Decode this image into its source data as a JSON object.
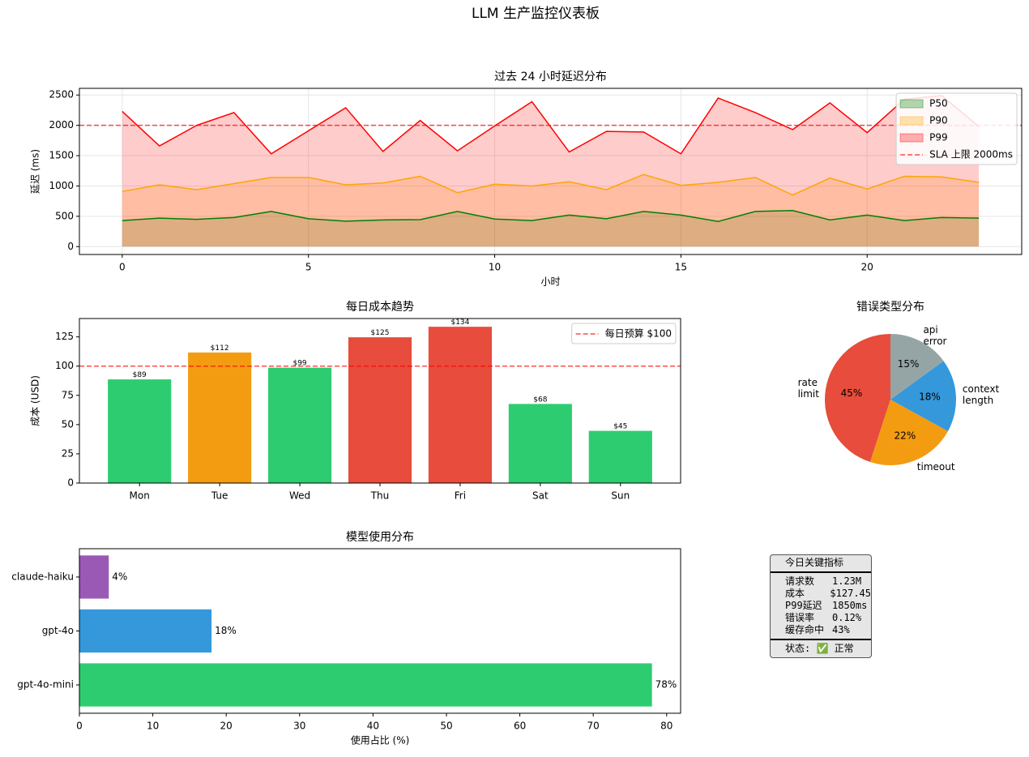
{
  "title": "LLM 生产监控仪表板",
  "chart_data": [
    {
      "type": "area",
      "title": "过去 24 小时延迟分布",
      "xlabel": "小时",
      "ylabel": "延迟 (ms)",
      "x": [
        0,
        1,
        2,
        3,
        4,
        5,
        6,
        7,
        8,
        9,
        10,
        11,
        12,
        13,
        14,
        15,
        16,
        17,
        18,
        19,
        20,
        21,
        22,
        23
      ],
      "series": [
        {
          "name": "P50",
          "color": "green",
          "values": [
            430,
            470,
            450,
            480,
            580,
            460,
            420,
            440,
            445,
            580,
            455,
            430,
            520,
            460,
            580,
            520,
            415,
            580,
            595,
            440,
            520,
            430,
            480,
            470
          ]
        },
        {
          "name": "P90",
          "color": "orange",
          "values": [
            910,
            1020,
            940,
            1040,
            1140,
            1140,
            1020,
            1050,
            1160,
            890,
            1030,
            1000,
            1070,
            940,
            1190,
            1010,
            1060,
            1140,
            850,
            1130,
            950,
            1160,
            1150,
            1060
          ]
        },
        {
          "name": "P99",
          "color": "red",
          "values": [
            2230,
            1660,
            2000,
            2210,
            1530,
            1910,
            2290,
            1570,
            2080,
            1580,
            1990,
            2390,
            1560,
            1900,
            1890,
            1530,
            2450,
            2210,
            1930,
            2370,
            1880,
            2430,
            2490,
            1980
          ]
        }
      ],
      "reference_lines": [
        {
          "name": "SLA 上限 2000ms",
          "value": 2000,
          "color": "red"
        }
      ],
      "xlim": [
        -1.15,
        24.15
      ],
      "ylim": [
        -130,
        2610
      ],
      "xticks": [
        0,
        5,
        10,
        15,
        20
      ],
      "yticks": [
        0,
        500,
        1000,
        1500,
        2000,
        2500
      ],
      "grid": true,
      "legend": "upper right"
    },
    {
      "type": "bar",
      "title": "每日成本趋势",
      "ylabel": "成本 (USD)",
      "categories": [
        "Mon",
        "Tue",
        "Wed",
        "Thu",
        "Fri",
        "Sat",
        "Sun"
      ],
      "values": [
        89,
        112,
        99,
        125,
        134,
        68,
        45
      ],
      "value_labels": [
        "$89",
        "$112",
        "$99",
        "$125",
        "$134",
        "$68",
        "$45"
      ],
      "colors": [
        "#2ecc71",
        "#f39c12",
        "#2ecc71",
        "#e74c3c",
        "#e74c3c",
        "#2ecc71",
        "#2ecc71"
      ],
      "reference_lines": [
        {
          "name": "每日预算 $100",
          "value": 100,
          "color": "red"
        }
      ],
      "ylim": [
        0,
        140.7
      ],
      "yticks": [
        0,
        25,
        50,
        75,
        100,
        125
      ],
      "legend": "upper right"
    },
    {
      "type": "pie",
      "title": "错误类型分布",
      "labels": [
        "rate\nlimit",
        "timeout",
        "context\nlength",
        "api\nerror"
      ],
      "values": [
        45,
        22,
        18,
        15
      ],
      "value_labels": [
        "45%",
        "22%",
        "18%",
        "15%"
      ],
      "colors": [
        "#e74c3c",
        "#f39c12",
        "#3498db",
        "#95a5a6"
      ],
      "start_angle": 90
    },
    {
      "type": "barh",
      "title": "模型使用分布",
      "xlabel": "使用占比 (%)",
      "categories": [
        "gpt-4o-mini",
        "gpt-4o",
        "claude-haiku"
      ],
      "values": [
        78,
        18,
        4
      ],
      "value_labels": [
        "78%",
        "18%",
        "4%"
      ],
      "colors": [
        "#2ecc71",
        "#3498db",
        "#9b59b6"
      ],
      "xlim": [
        0,
        81.9
      ],
      "xticks": [
        0,
        10,
        20,
        30,
        40,
        50,
        60,
        70,
        80
      ]
    }
  ],
  "summary_box": {
    "title": "今日关键指标",
    "rows": [
      {
        "label": "请求数",
        "value": "1.23M"
      },
      {
        "label": "成本",
        "value": "$127.45"
      },
      {
        "label": "P99延迟",
        "value": "1850ms"
      },
      {
        "label": "错误率",
        "value": "0.12%"
      },
      {
        "label": "缓存命中",
        "value": "43%"
      }
    ],
    "status": "状态: ✅ 正常"
  }
}
